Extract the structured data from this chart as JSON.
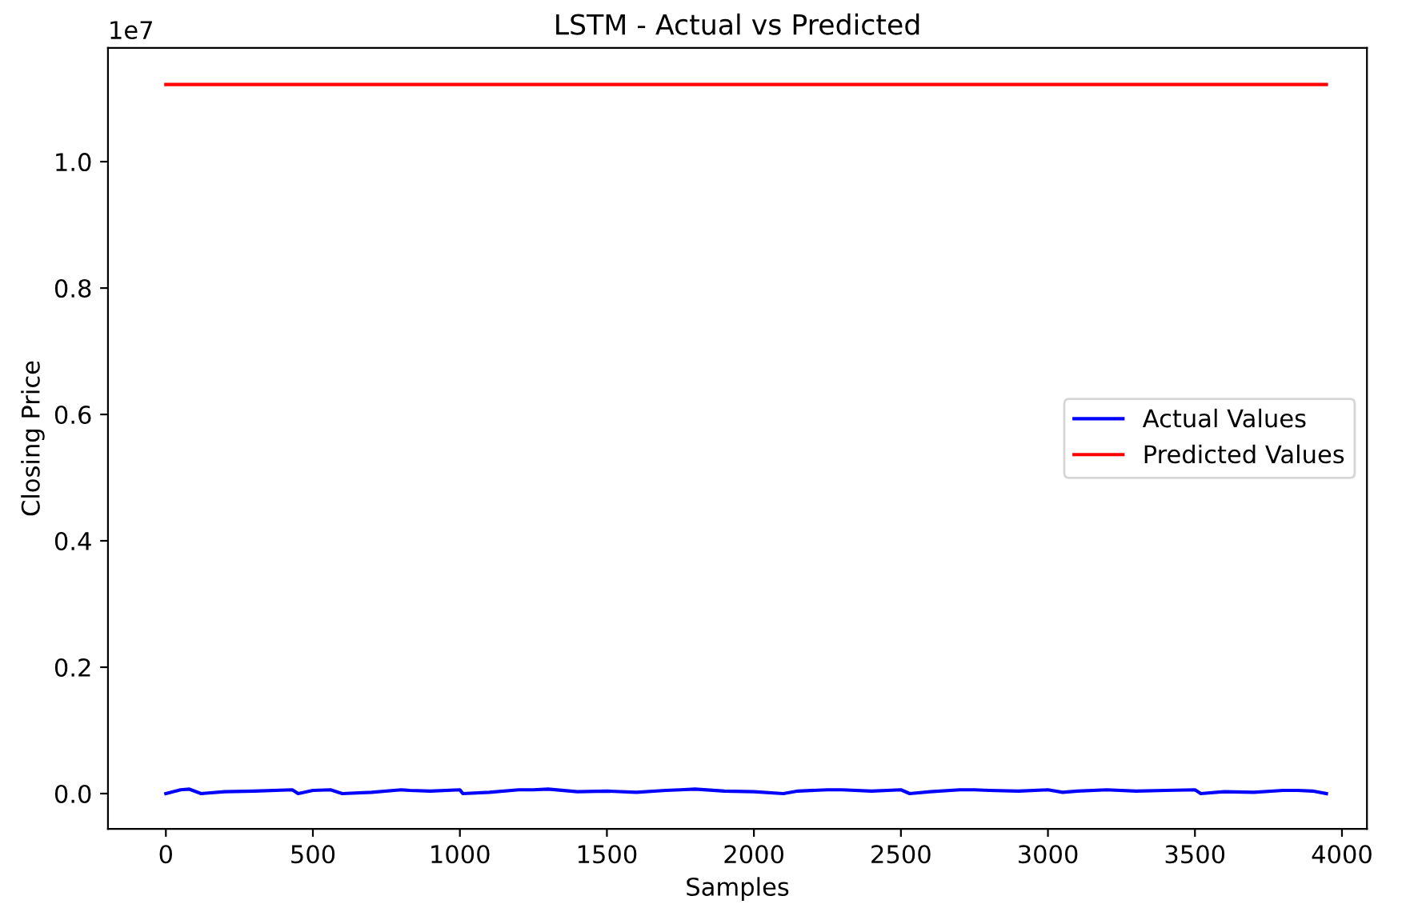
{
  "chart_data": {
    "type": "line",
    "title": "LSTM - Actual vs Predicted",
    "xlabel": "Samples",
    "ylabel": "Closing Price",
    "annotations": [
      "1e7"
    ],
    "xlim": [
      -197,
      4085
    ],
    "xticks": [
      0,
      500,
      1000,
      1500,
      2000,
      2500,
      3000,
      3500,
      4000
    ],
    "ylim": [
      -0.056,
      1.18
    ],
    "yticks": [
      {
        "value": 0,
        "label": "0.0"
      },
      0.2,
      0.4,
      0.6,
      0.8,
      {
        "value": 1,
        "label": "1.0"
      }
    ],
    "grid": false,
    "legend": "right",
    "series": [
      {
        "name": "Actual Values",
        "color": "#0000ff",
        "x": [
          0,
          50,
          80,
          120,
          200,
          300,
          430,
          450,
          500,
          560,
          600,
          700,
          800,
          830,
          900,
          1000,
          1010,
          1100,
          1200,
          1250,
          1300,
          1400,
          1500,
          1600,
          1700,
          1750,
          1800,
          1900,
          2000,
          2100,
          2150,
          2250,
          2300,
          2400,
          2500,
          2530,
          2600,
          2700,
          2750,
          2800,
          2900,
          3000,
          3050,
          3100,
          3200,
          3300,
          3400,
          3500,
          3520,
          3600,
          3700,
          3800,
          3850,
          3900,
          3947
        ],
        "values": [
          0,
          0.006,
          0.007,
          0,
          0.003,
          0.004,
          0.006,
          0,
          0.005,
          0.006,
          0,
          0.002,
          0.006,
          0.005,
          0.004,
          0.006,
          0,
          0.002,
          0.006,
          0.006,
          0.007,
          0.003,
          0.004,
          0.002,
          0.005,
          0.006,
          0.007,
          0.004,
          0.003,
          0,
          0.004,
          0.006,
          0.006,
          0.004,
          0.006,
          0,
          0.003,
          0.006,
          0.006,
          0.005,
          0.004,
          0.006,
          0.002,
          0.004,
          0.006,
          0.004,
          0.005,
          0.006,
          0,
          0.003,
          0.002,
          0.005,
          0.005,
          0.004,
          0
        ]
      },
      {
        "name": "Predicted Values",
        "color": "#ff0000",
        "x": [
          0,
          500,
          1000,
          1500,
          2000,
          2500,
          3000,
          3500,
          3947
        ],
        "values": [
          1.122,
          1.122,
          1.122,
          1.122,
          1.122,
          1.122,
          1.122,
          1.122,
          1.122
        ]
      }
    ]
  }
}
